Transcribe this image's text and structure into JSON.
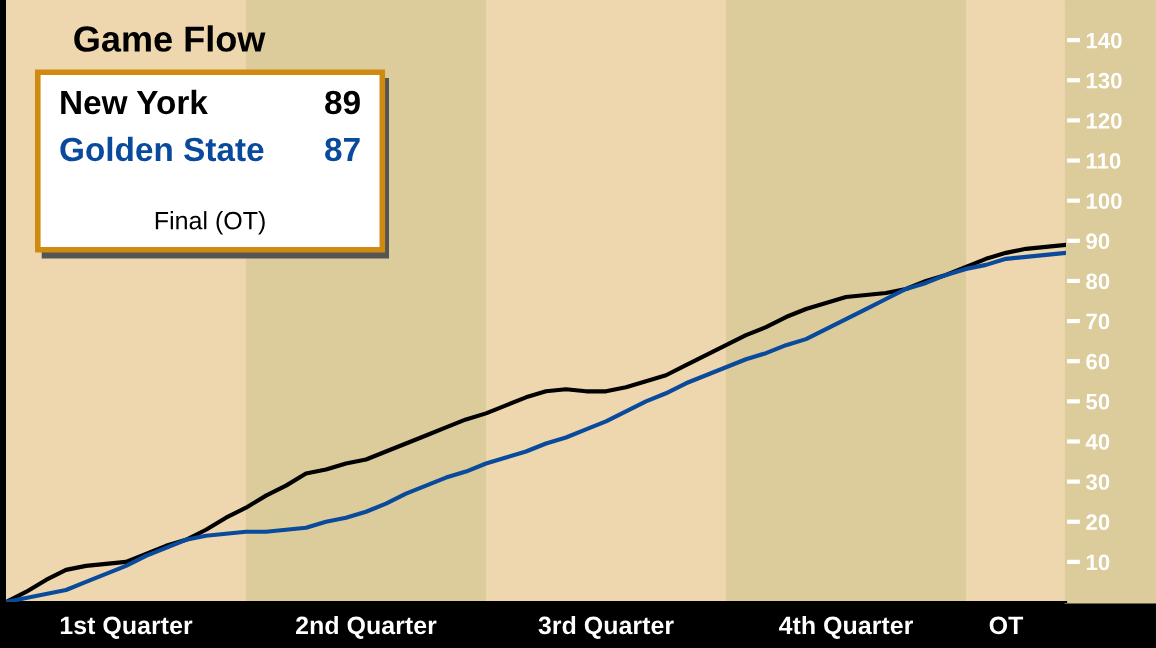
{
  "chart_data": {
    "type": "line",
    "title": "Game Flow",
    "categories": [
      null,
      null,
      null,
      null,
      null,
      null,
      "1st Quarter",
      null,
      null,
      null,
      null,
      null,
      null,
      null,
      null,
      null,
      null,
      null,
      "2nd Quarter",
      null,
      null,
      null,
      null,
      null,
      null,
      null,
      null,
      null,
      null,
      null,
      "3rd Quarter",
      null,
      null,
      null,
      null,
      null,
      null,
      null,
      null,
      null,
      null,
      null,
      "4th Quarter",
      null,
      null,
      null,
      null,
      null,
      null,
      null,
      "OT",
      null,
      null,
      null
    ],
    "series": [
      {
        "name": "New York",
        "color": "#000000",
        "values": [
          0,
          2.5,
          5.5,
          8,
          9,
          9.5,
          10,
          12,
          14,
          15.5,
          18,
          21,
          23.5,
          26.5,
          29,
          32,
          33,
          34.5,
          35.5,
          37.5,
          39.5,
          41.5,
          43.5,
          45.5,
          47,
          49,
          51,
          52.5,
          53,
          52.5,
          52.5,
          53.5,
          55,
          56.5,
          59,
          61.5,
          64,
          66.5,
          68.5,
          71,
          73,
          74.5,
          76,
          76.5,
          77,
          78,
          80,
          81.5,
          83.5,
          85.5,
          87,
          88,
          88.5,
          89
        ]
      },
      {
        "name": "Golden State",
        "color": "#0a4a9c",
        "values": [
          0,
          1,
          2,
          3,
          5,
          7,
          9,
          11.5,
          13.5,
          15.5,
          16.5,
          17,
          17.5,
          17.5,
          18,
          18.5,
          20,
          21,
          22.5,
          24.5,
          27,
          29,
          31,
          32.5,
          34.5,
          36,
          37.5,
          39.5,
          41,
          43,
          45,
          47.5,
          50,
          52,
          54.5,
          56.5,
          58.5,
          60.5,
          62,
          64,
          65.5,
          68,
          70.5,
          73,
          75.5,
          78,
          79.5,
          81.5,
          83,
          84,
          85.5,
          86,
          86.5,
          87
        ]
      }
    ],
    "ylim": [
      0,
      150
    ],
    "yticks": [
      10,
      20,
      30,
      40,
      50,
      60,
      70,
      80,
      90,
      100,
      110,
      120,
      130,
      140
    ],
    "annotations": [
      "89",
      "87",
      "Final (OT)"
    ],
    "legend": "top left",
    "grid": false,
    "marker": "none",
    "line_style": "solid"
  }
}
